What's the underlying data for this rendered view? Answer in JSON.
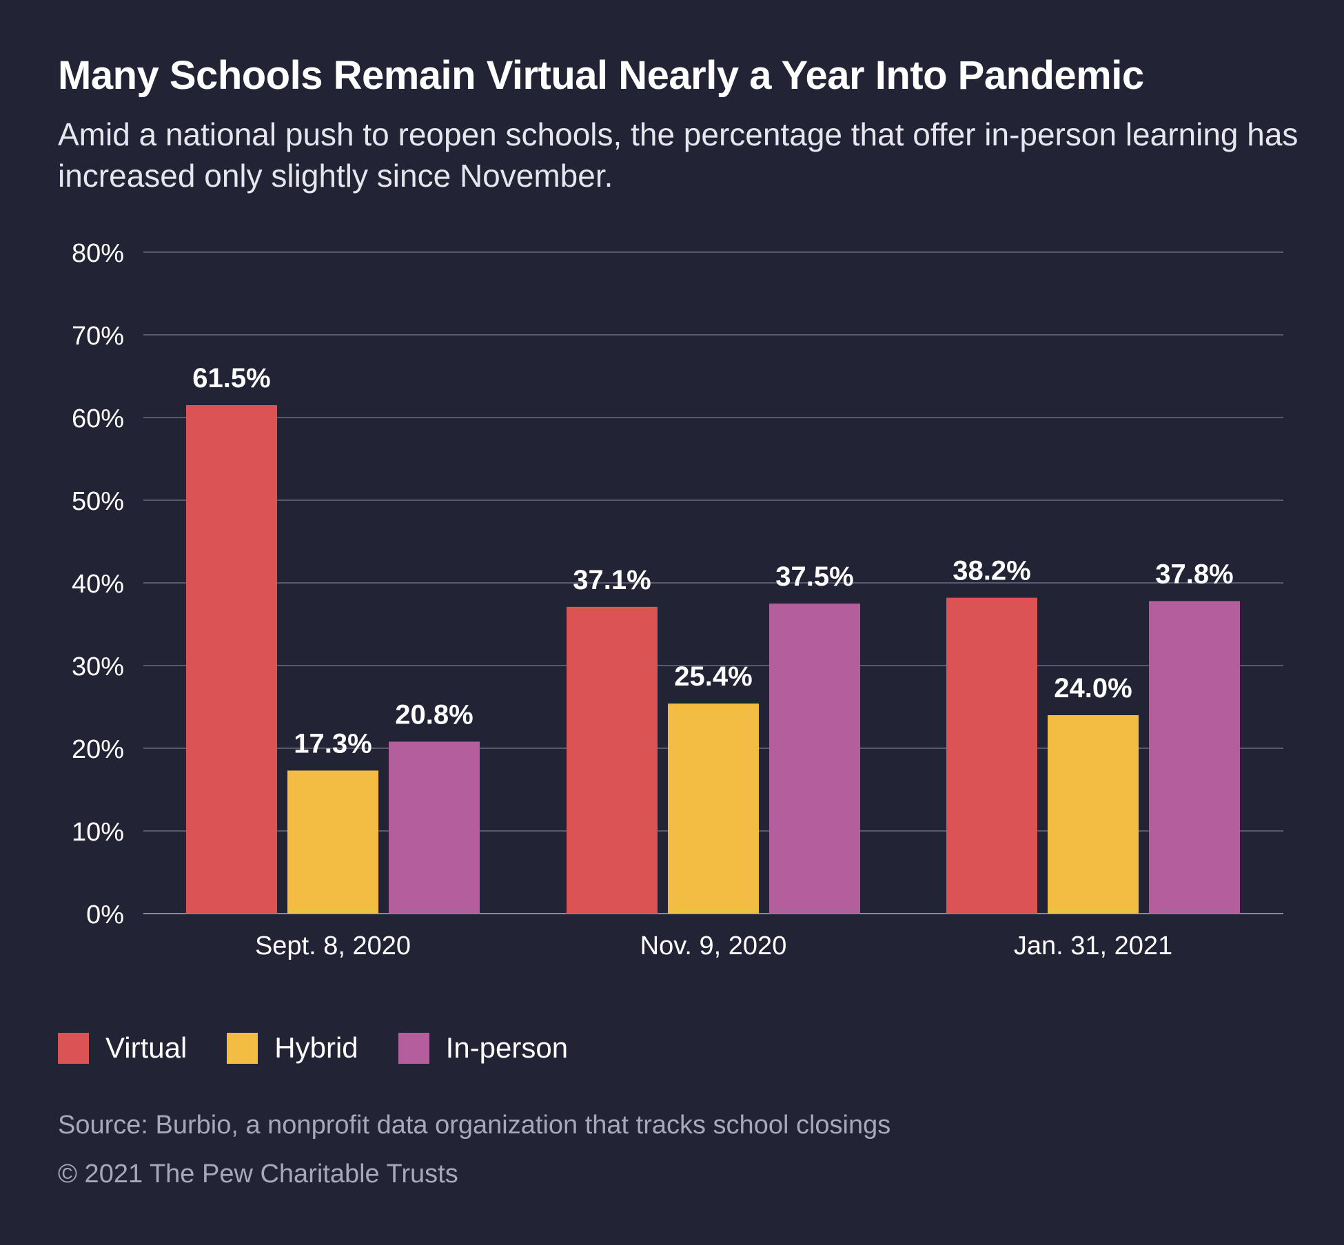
{
  "title": "Many Schools Remain Virtual Nearly a Year Into Pandemic",
  "subtitle": "Amid a national push to reopen schools, the percentage that offer in-person learning has increased only slightly since November.",
  "source": "Source: Burbio, a nonprofit data organization that tracks school closings",
  "copyright": "© 2021 The Pew Charitable Trusts",
  "colors": {
    "background": "#222435",
    "gridline": "#6b6d80",
    "virtual": "#d95453",
    "hybrid": "#f3bc42",
    "in_person": "#b45e9e"
  },
  "chart_data": {
    "type": "bar",
    "categories": [
      "Sept. 8, 2020",
      "Nov. 9, 2020",
      "Jan. 31, 2021"
    ],
    "series": [
      {
        "name": "Virtual",
        "color": "#d95453",
        "values": [
          61.5,
          37.1,
          38.2
        ],
        "labels": [
          "61.5%",
          "37.1%",
          "38.2%"
        ]
      },
      {
        "name": "Hybrid",
        "color": "#f3bc42",
        "values": [
          17.3,
          25.4,
          24.0
        ],
        "labels": [
          "17.3%",
          "25.4%",
          "24.0%"
        ]
      },
      {
        "name": "In-person",
        "color": "#b45e9e",
        "values": [
          20.8,
          37.5,
          37.8
        ],
        "labels": [
          "20.8%",
          "37.5%",
          "37.8%"
        ]
      }
    ],
    "ylim": [
      0,
      80
    ],
    "yticks": [
      0,
      10,
      20,
      30,
      40,
      50,
      60,
      70,
      80
    ],
    "ytick_labels": [
      "0%",
      "10%",
      "20%",
      "30%",
      "40%",
      "50%",
      "60%",
      "70%",
      "80%"
    ],
    "grid": true,
    "legend": "bottom-left",
    "legend_entries": [
      {
        "label": "Virtual",
        "color": "#d95453"
      },
      {
        "label": "Hybrid",
        "color": "#f3bc42"
      },
      {
        "label": "In-person",
        "color": "#b45e9e"
      }
    ]
  }
}
